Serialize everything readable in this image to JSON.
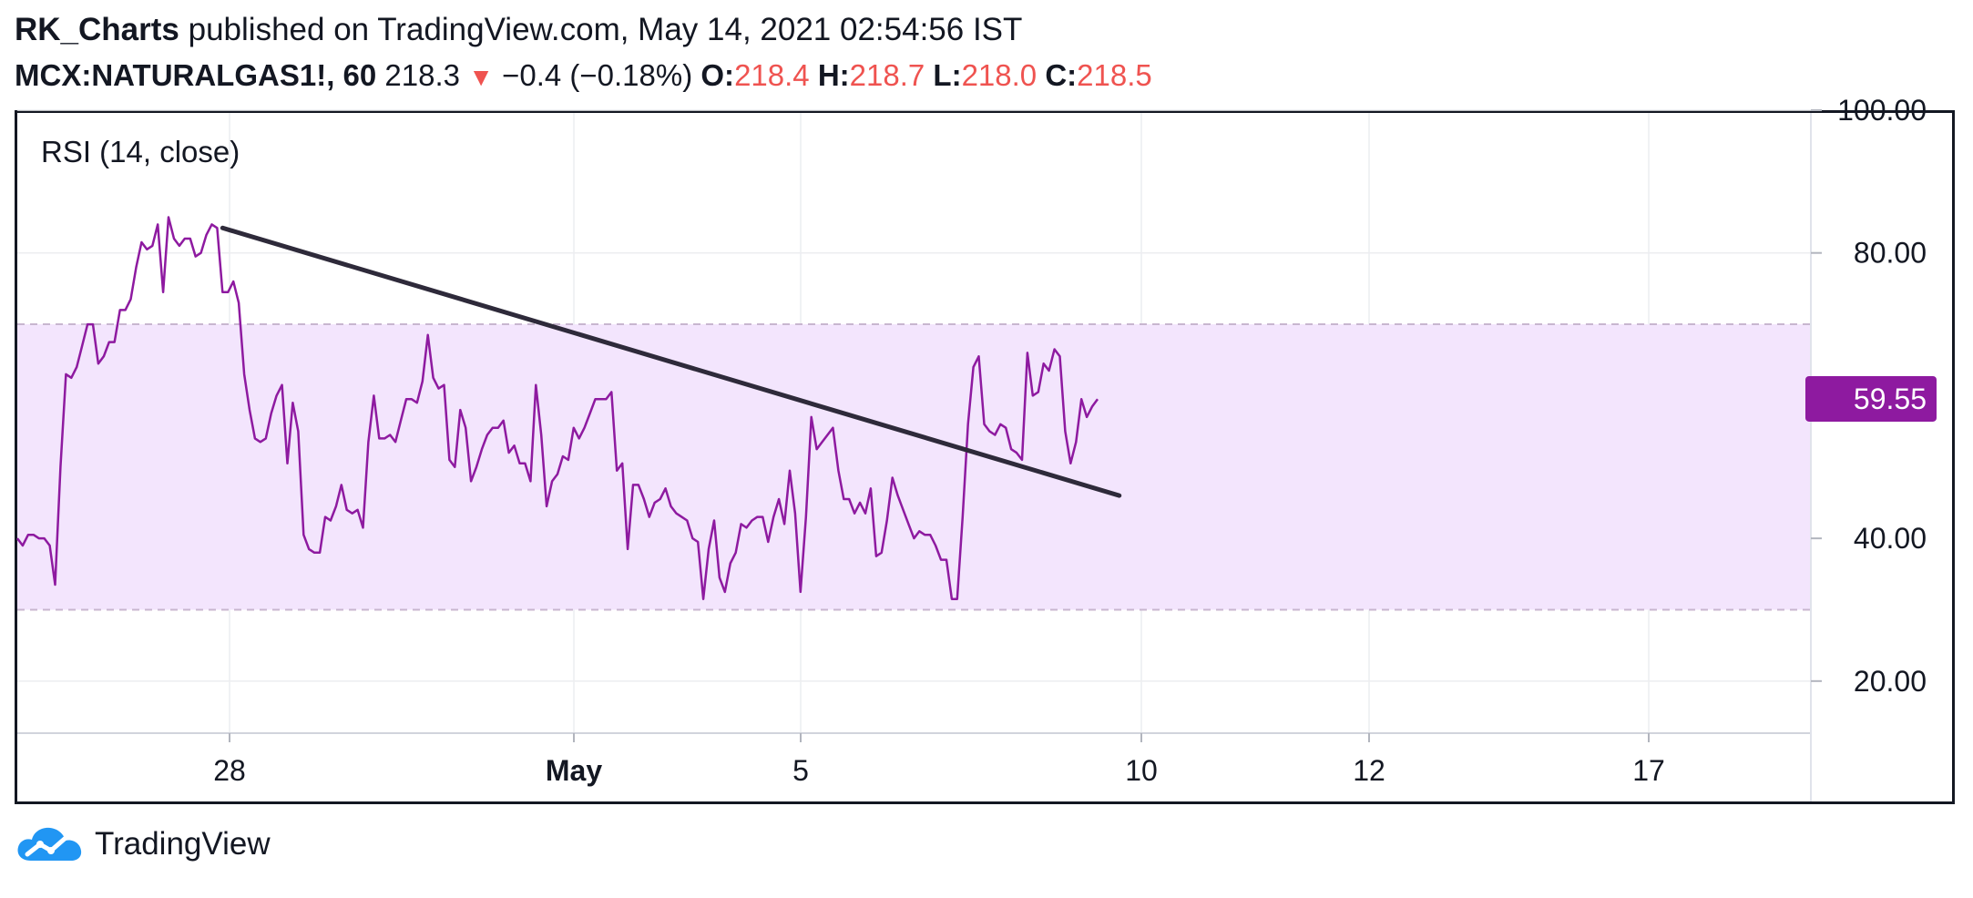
{
  "header": {
    "author": "RK_Charts",
    "published_text": "published on TradingView.com, May 14, 2021 02:54:56 IST",
    "symbol": "MCX:NATURALGAS1!, 60",
    "price": "218.3",
    "change": "−0.4 (−0.18%)",
    "open_label": "O:",
    "open_value": "218.4",
    "high_label": "H:",
    "high_value": "218.7",
    "low_label": "L:",
    "low_value": "218.0",
    "close_label": "C:",
    "close_value": "218.5"
  },
  "footer": {
    "brand": "TradingView"
  },
  "colors": {
    "rsi_line": "#8e1aa0",
    "band_fill": "#f3e5fd",
    "band_border": "#c8b6cf",
    "trendline": "#2e2a3a",
    "down": "#ef5350",
    "price_badge": "#8e1aa0",
    "grid": "#ecedf0"
  },
  "chart_data": {
    "type": "line",
    "indicator_label": "RSI (14, close)",
    "ylim": [
      15,
      100
    ],
    "y_ticks": [
      "20.00",
      "40.00",
      "80.00",
      "100.00"
    ],
    "band": [
      30,
      70
    ],
    "current_value": "59.55",
    "x_tick_labels": [
      "28",
      "May",
      "5",
      "10",
      "12",
      "17"
    ],
    "series": [
      {
        "values": [
          40,
          39,
          40.5,
          40.5,
          40,
          40,
          39,
          33.5,
          50,
          63,
          62.5,
          64,
          67,
          70,
          70,
          64.5,
          65.5,
          67.5,
          67.5,
          72,
          72,
          73.5,
          78,
          81.5,
          80.5,
          81,
          84,
          74.5,
          85,
          82,
          81,
          82,
          82,
          79.5,
          80,
          82.5,
          84,
          83.5,
          74.5,
          74.5,
          76,
          73,
          63,
          58,
          54,
          53.5,
          54,
          57.5,
          60,
          61.5,
          50.5,
          59,
          55,
          40.5,
          38.5,
          38,
          38,
          43,
          42.5,
          44.5,
          47.5,
          44,
          43.5,
          44,
          41.5,
          53.5,
          60,
          54,
          54,
          54.5,
          53.5,
          56.5,
          59.5,
          59.5,
          59,
          62,
          68.5,
          62.5,
          61,
          61.5,
          51,
          50,
          58,
          55.5,
          48,
          50,
          52.5,
          54.5,
          55.5,
          55.5,
          56.5,
          52,
          53,
          50.5,
          50.5,
          48,
          61.5,
          54.5,
          44.5,
          48,
          49,
          51.5,
          51,
          55.5,
          54,
          55.5,
          57.5,
          59.5,
          59.5,
          59.5,
          60.5,
          49.5,
          50.5,
          38.5,
          47.5,
          47.5,
          45.5,
          43,
          45,
          45.5,
          47,
          44.5,
          43.5,
          43,
          42.5,
          40,
          39.5,
          31.5,
          38.5,
          42.5,
          34.5,
          32.5,
          36.5,
          38,
          42,
          41.5,
          42.5,
          43,
          43,
          39.5,
          43,
          45.5,
          42,
          49.5,
          43.5,
          32.5,
          43,
          57,
          52.5,
          53.5,
          54.5,
          55.5,
          49.5,
          45.5,
          45.5,
          43.5,
          45,
          43.5,
          47,
          37.5,
          38,
          42.5,
          48.5,
          46,
          44,
          42,
          40,
          41,
          40.5,
          40.5,
          39,
          37,
          37,
          31.5,
          31.5,
          43,
          56,
          64,
          65.5,
          56,
          55,
          54.5,
          56,
          55.5,
          52.5,
          52,
          51,
          66,
          60,
          60.5,
          64.5,
          63.5,
          66.5,
          65.5,
          55,
          50.5,
          53.5,
          59.5,
          57,
          58.5,
          59.5
        ]
      }
    ],
    "trendline": {
      "start": {
        "bar": 38,
        "value": 83.5
      },
      "end": {
        "bar": 204,
        "value": 46
      }
    }
  }
}
